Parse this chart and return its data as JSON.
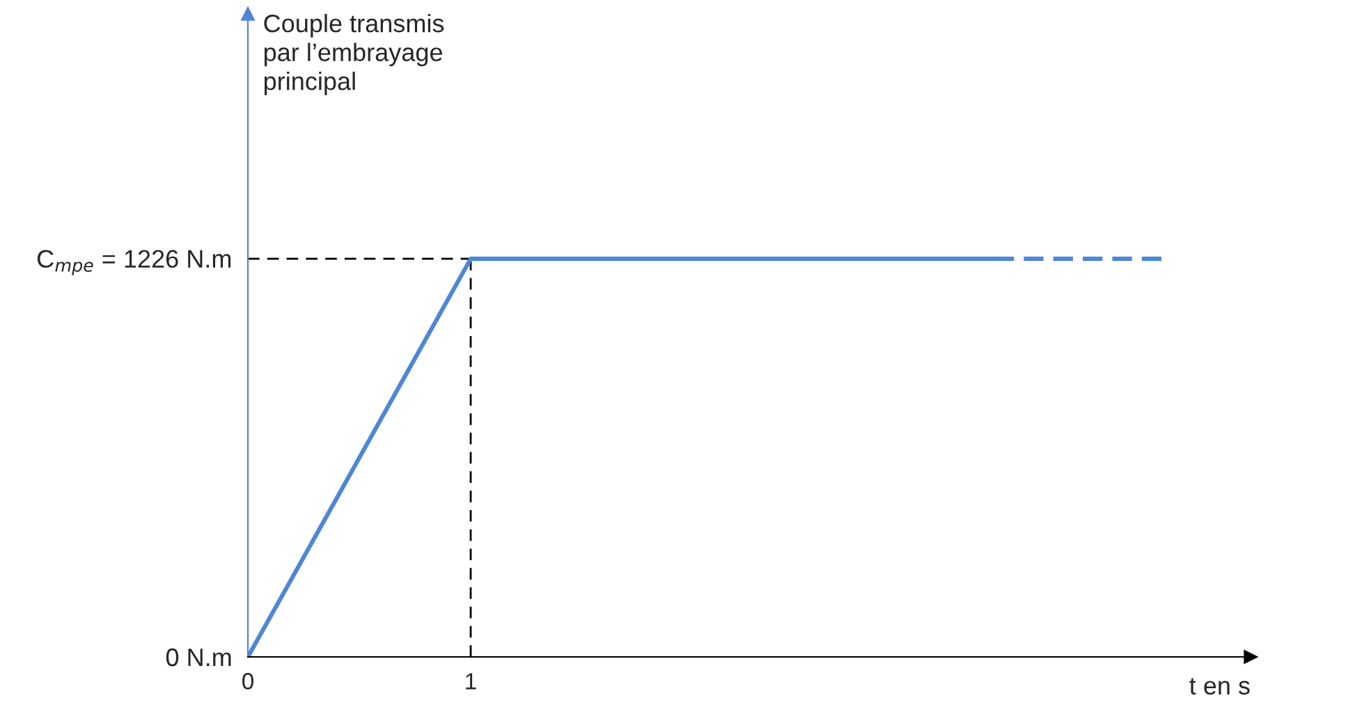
{
  "chart_data": {
    "type": "line",
    "xlabel": "t en s",
    "ylabel": "Couple transmis\npar l’embrayage\nprincipal",
    "series": [
      {
        "color": "#4f86d6",
        "x": [
          0,
          1,
          3.35
        ],
        "values": [
          0,
          1226,
          1226
        ],
        "line_style": "solid"
      },
      {
        "color": "#4f86d6",
        "x": [
          3.35,
          4.1
        ],
        "values": [
          1226,
          1226
        ],
        "line_style": "dashed"
      }
    ],
    "xlim": [
      0,
      4.5
    ],
    "ylim": [
      0,
      1980
    ],
    "xticks": [
      0,
      1
    ],
    "yticks": [
      {
        "value": 0,
        "label": "0 N.m"
      },
      {
        "value": 1226,
        "label": "C$_{mpe}$ = 1226 N.m"
      }
    ],
    "ref_lines": [
      {
        "axis": "y",
        "value": 1226,
        "color": "#000000",
        "line_style": "dashed"
      },
      {
        "axis": "x",
        "value": 1,
        "color": "#000000",
        "line_style": "dashed"
      }
    ],
    "grid": false,
    "legend": false,
    "marker": "none"
  }
}
